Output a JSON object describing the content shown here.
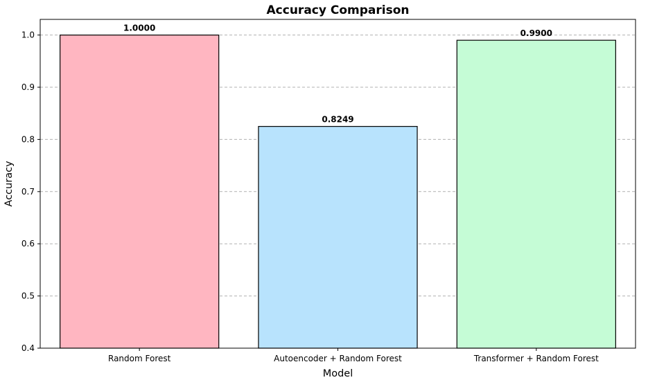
{
  "chart_data": {
    "type": "bar",
    "title": "Accuracy Comparison",
    "xlabel": "Model",
    "ylabel": "Accuracy",
    "categories": [
      "Random Forest",
      "Autoencoder + Random Forest",
      "Transformer + Random Forest"
    ],
    "values": [
      1.0,
      0.8249,
      0.99
    ],
    "data_labels": [
      "1.0000",
      "0.8249",
      "0.9900"
    ],
    "colors": [
      "#ffb6c1",
      "#b8e3fd",
      "#c5fcd6"
    ],
    "ylim": [
      0.4,
      1.03
    ],
    "yticks": [
      0.4,
      0.5,
      0.6,
      0.7,
      0.8,
      0.9,
      1.0
    ],
    "ytick_labels": [
      "0.4",
      "0.5",
      "0.6",
      "0.7",
      "0.8",
      "0.9",
      "1.0"
    ],
    "grid": "y-dashed",
    "legend": "none"
  }
}
